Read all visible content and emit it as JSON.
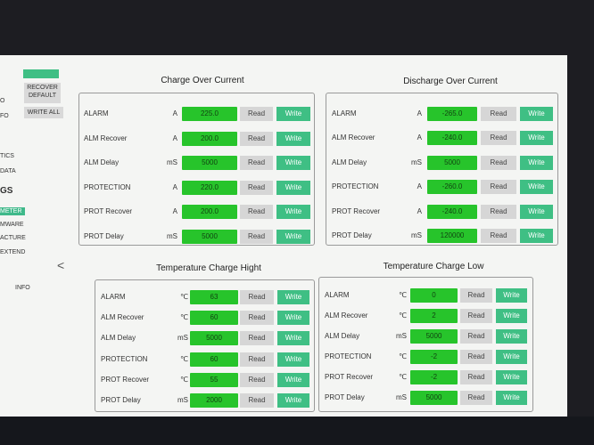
{
  "sidebar": {
    "nav": [
      "O",
      "FO",
      "TICS",
      "DATA",
      "GS",
      "METER",
      "MWARE",
      "ACTURE",
      "EXTEND",
      "INFO"
    ],
    "buttons": [
      "RECOVER DEFAULT",
      "WRITE ALL"
    ],
    "back": "<"
  },
  "read_label": "Read",
  "write_label": "Write",
  "panels": [
    {
      "title": "Charge Over Current",
      "rows": [
        {
          "label": "ALARM",
          "unit": "A",
          "value": "225.0"
        },
        {
          "label": "ALM Recover",
          "unit": "A",
          "value": "200.0"
        },
        {
          "label": "ALM Delay",
          "unit": "mS",
          "value": "5000"
        },
        {
          "label": "PROTECTION",
          "unit": "A",
          "value": "220.0"
        },
        {
          "label": "PROT Recover",
          "unit": "A",
          "value": "200.0"
        },
        {
          "label": "PROT Delay",
          "unit": "mS",
          "value": "5000"
        }
      ]
    },
    {
      "title": "Discharge Over Current",
      "rows": [
        {
          "label": "ALARM",
          "unit": "A",
          "value": "-265.0"
        },
        {
          "label": "ALM Recover",
          "unit": "A",
          "value": "-240.0"
        },
        {
          "label": "ALM Delay",
          "unit": "mS",
          "value": "5000"
        },
        {
          "label": "PROTECTION",
          "unit": "A",
          "value": "-260.0"
        },
        {
          "label": "PROT Recover",
          "unit": "A",
          "value": "-240.0"
        },
        {
          "label": "PROT Delay",
          "unit": "mS",
          "value": "120000"
        }
      ]
    },
    {
      "title": "Temperature Charge Hight",
      "rows": [
        {
          "label": "ALARM",
          "unit": "℃",
          "value": "63"
        },
        {
          "label": "ALM Recover",
          "unit": "℃",
          "value": "60"
        },
        {
          "label": "ALM Delay",
          "unit": "mS",
          "value": "5000"
        },
        {
          "label": "PROTECTION",
          "unit": "℃",
          "value": "60"
        },
        {
          "label": "PROT Recover",
          "unit": "℃",
          "value": "55"
        },
        {
          "label": "PROT Delay",
          "unit": "mS",
          "value": "2000"
        }
      ]
    },
    {
      "title": "Temperature Charge Low",
      "rows": [
        {
          "label": "ALARM",
          "unit": "℃",
          "value": "0"
        },
        {
          "label": "ALM Recover",
          "unit": "℃",
          "value": "2"
        },
        {
          "label": "ALM Delay",
          "unit": "mS",
          "value": "5000"
        },
        {
          "label": "PROTECTION",
          "unit": "℃",
          "value": "-2"
        },
        {
          "label": "PROT Recover",
          "unit": "℃",
          "value": "-2"
        },
        {
          "label": "PROT Delay",
          "unit": "mS",
          "value": "5000"
        }
      ]
    }
  ]
}
